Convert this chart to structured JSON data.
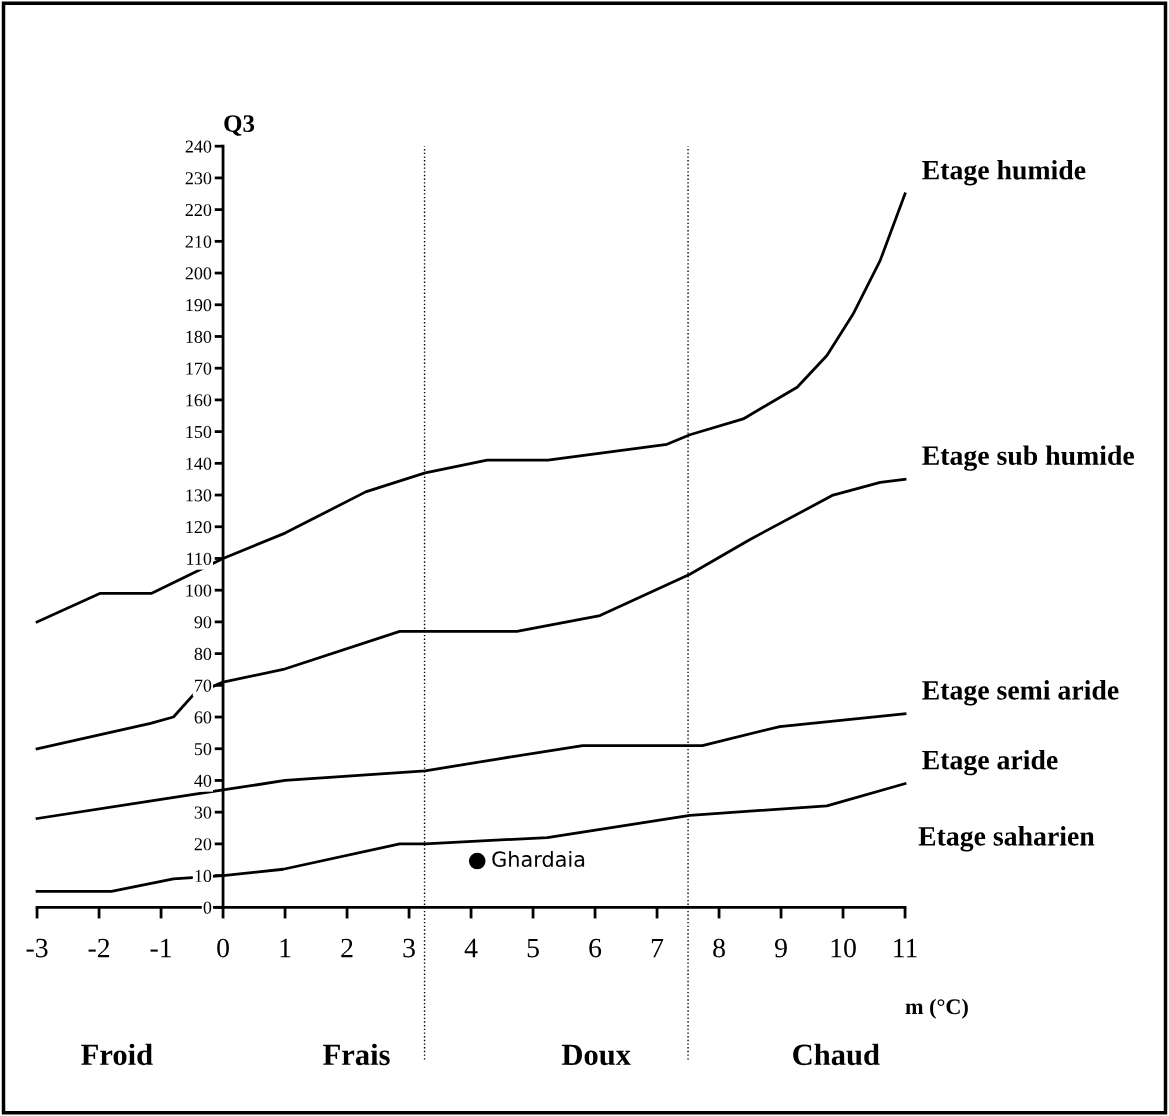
{
  "chart_data": {
    "type": "line",
    "ylabel": "Q3",
    "xlabel": "m (°C)",
    "xlim": [
      -3,
      11
    ],
    "xticks": [
      -3,
      -2,
      -1,
      0,
      1,
      2,
      3,
      4,
      5,
      6,
      7,
      8,
      9,
      10,
      11
    ],
    "ylim": [
      0,
      240
    ],
    "yticks": [
      0,
      10,
      20,
      30,
      40,
      50,
      60,
      70,
      80,
      90,
      100,
      110,
      120,
      130,
      140,
      150,
      160,
      170,
      180,
      190,
      200,
      210,
      220,
      230,
      240
    ],
    "grid": false,
    "legend": false,
    "line_style": "solid",
    "series": [
      {
        "name": "Etage humide",
        "color": "#000000",
        "x": [
          -3,
          -1.98,
          -1.15,
          0,
          1.0,
          2.3,
          3.26,
          4.26,
          5.24,
          7.16,
          7.53,
          8.39,
          9.26,
          9.74,
          10.16,
          10.6,
          11
        ],
        "values": [
          90,
          99,
          99,
          110,
          118,
          131,
          137,
          141,
          141,
          146,
          149,
          154,
          164,
          174,
          187,
          204,
          225
        ]
      },
      {
        "name": "Etage sub humide",
        "color": "#000000",
        "x": [
          -3,
          -1.17,
          -0.8,
          -0.48,
          0,
          0.97,
          2.85,
          3.26,
          4.74,
          6.08,
          7.53,
          8.5,
          9.84,
          10.6,
          11
        ],
        "values": [
          50,
          58,
          60,
          67,
          71,
          75,
          87,
          87,
          87,
          92,
          105,
          116,
          130,
          134,
          135
        ]
      },
      {
        "name": "Etage semi aride",
        "color": "#000000",
        "x": [
          -3,
          -1,
          0,
          1,
          3.26,
          4.5,
          5.8,
          7.73,
          8.98,
          11
        ],
        "values": [
          28,
          34,
          37,
          40,
          43,
          47,
          51,
          51,
          57,
          61
        ]
      },
      {
        "name": "Etage aride",
        "color": "#000000",
        "x": [
          -3,
          -1.8,
          -0.8,
          0,
          0.97,
          2.85,
          3.26,
          5.23,
          7.53,
          9.74,
          11
        ],
        "values": [
          5,
          5,
          9,
          10,
          12,
          20,
          20,
          22,
          29,
          32,
          39
        ]
      },
      {
        "name": "Ghardaia",
        "type": "scatter",
        "marker": "circle",
        "color": "#000000",
        "x": [
          4.1
        ],
        "values": [
          14.6
        ]
      }
    ],
    "ref_lines": [
      {
        "axis": "x",
        "value": 3.25,
        "line_style": "dotted"
      },
      {
        "axis": "x",
        "value": 7.5,
        "line_style": "dotted"
      }
    ],
    "annotations": [
      "Froid",
      "Frais",
      "Doux",
      "Chaud",
      "Etage saharien"
    ]
  }
}
